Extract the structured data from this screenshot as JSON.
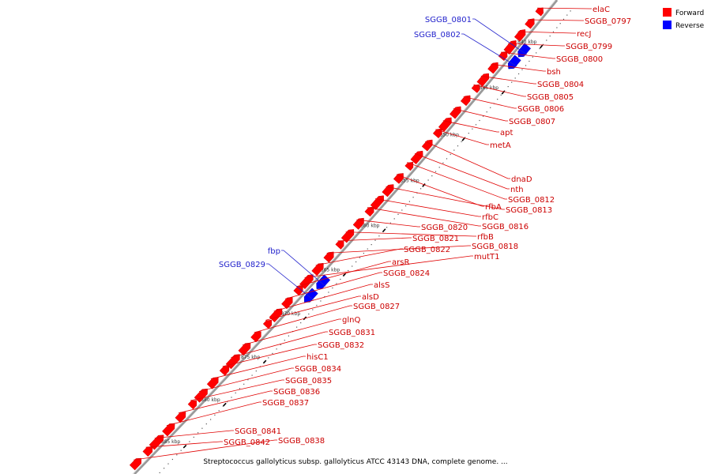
{
  "caption": "Streptococcus gallolyticus subsp. gallolyticus ATCC 43143 DNA, complete genome. ...",
  "legend": [
    {
      "label": "Forward",
      "color": "#ff0000"
    },
    {
      "label": "Reverse",
      "color": "#0000ff"
    }
  ],
  "colors": {
    "forward": "#ff0000",
    "reverse": "#0000ff",
    "leader": "#e00000",
    "leader_rev": "#2222cc",
    "backbone": "#999999"
  },
  "ticks": [
    "840 kbp",
    "845 kbp",
    "850 kbp",
    "855 kbp",
    "860 kbp",
    "865 kbp",
    "870 kbp",
    "875 kbp",
    "880 kbp",
    "885 kbp"
  ],
  "genes": [
    {
      "name": "elaC",
      "strand": "forward"
    },
    {
      "name": "SGGB_0797",
      "strand": "forward"
    },
    {
      "name": "recJ",
      "strand": "forward"
    },
    {
      "name": "SGGB_0799",
      "strand": "forward"
    },
    {
      "name": "SGGB_0800",
      "strand": "forward"
    },
    {
      "name": "bsh",
      "strand": "forward"
    },
    {
      "name": "SGGB_0804",
      "strand": "forward"
    },
    {
      "name": "SGGB_0805",
      "strand": "forward"
    },
    {
      "name": "SGGB_0806",
      "strand": "forward"
    },
    {
      "name": "SGGB_0807",
      "strand": "forward"
    },
    {
      "name": "apt",
      "strand": "forward"
    },
    {
      "name": "metA",
      "strand": "forward"
    },
    {
      "name": "dnaD",
      "strand": "forward"
    },
    {
      "name": "nth",
      "strand": "forward"
    },
    {
      "name": "SGGB_0812",
      "strand": "forward"
    },
    {
      "name": "rfbA",
      "strand": "forward"
    },
    {
      "name": "SGGB_0813",
      "strand": "forward"
    },
    {
      "name": "rfbC",
      "strand": "forward"
    },
    {
      "name": "SGGB_0816",
      "strand": "forward"
    },
    {
      "name": "SGGB_0820",
      "strand": "forward"
    },
    {
      "name": "rfbB",
      "strand": "forward"
    },
    {
      "name": "SGGB_0821",
      "strand": "forward"
    },
    {
      "name": "SGGB_0818",
      "strand": "forward"
    },
    {
      "name": "SGGB_0822",
      "strand": "forward"
    },
    {
      "name": "mutT1",
      "strand": "forward"
    },
    {
      "name": "arsR",
      "strand": "forward"
    },
    {
      "name": "SGGB_0824",
      "strand": "forward"
    },
    {
      "name": "alsS",
      "strand": "forward"
    },
    {
      "name": "alsD",
      "strand": "forward"
    },
    {
      "name": "SGGB_0827",
      "strand": "forward"
    },
    {
      "name": "glnQ",
      "strand": "forward"
    },
    {
      "name": "SGGB_0831",
      "strand": "forward"
    },
    {
      "name": "SGGB_0832",
      "strand": "forward"
    },
    {
      "name": "hisC1",
      "strand": "forward"
    },
    {
      "name": "SGGB_0834",
      "strand": "forward"
    },
    {
      "name": "SGGB_0835",
      "strand": "forward"
    },
    {
      "name": "SGGB_0836",
      "strand": "forward"
    },
    {
      "name": "SGGB_0837",
      "strand": "forward"
    },
    {
      "name": "SGGB_0841",
      "strand": "forward"
    },
    {
      "name": "SGGB_0842",
      "strand": "forward"
    },
    {
      "name": "SGGB_0838",
      "strand": "forward"
    },
    {
      "name": "SGGB_0801",
      "strand": "reverse"
    },
    {
      "name": "SGGB_0802",
      "strand": "reverse"
    },
    {
      "name": "fbp",
      "strand": "reverse"
    },
    {
      "name": "SGGB_0829",
      "strand": "reverse"
    }
  ]
}
